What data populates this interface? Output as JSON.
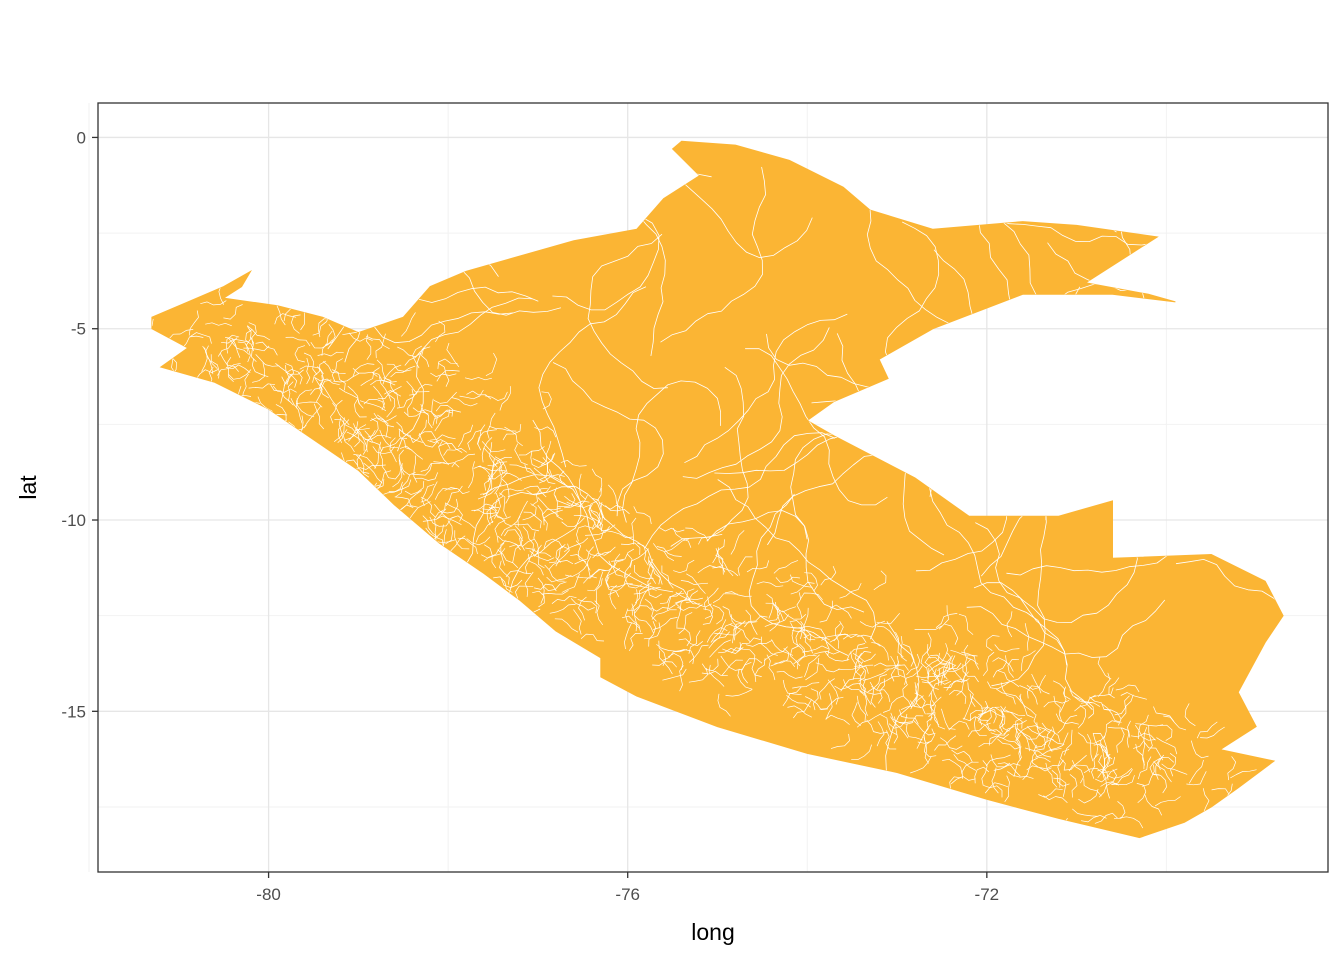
{
  "chart_data": {
    "type": "map",
    "xlabel": "long",
    "ylabel": "lat",
    "xlim": [
      -81.9,
      -68.2
    ],
    "ylim": [
      -19.2,
      0.9
    ],
    "x_ticks": [
      -80,
      -76,
      -72
    ],
    "y_ticks": [
      0,
      -5,
      -10,
      -15
    ],
    "x_minor": [
      -82,
      -78,
      -74,
      -70
    ],
    "y_minor": [
      -2.5,
      -7.5,
      -12.5,
      -17.5
    ],
    "grid": true,
    "fill_color": "#FBB534",
    "border_color": "#FFFFFF",
    "region": "Peru districts",
    "outline": [
      [
        -75.4,
        -0.1
      ],
      [
        -74.8,
        -0.2
      ],
      [
        -74.2,
        -0.6
      ],
      [
        -73.6,
        -1.3
      ],
      [
        -73.3,
        -1.9
      ],
      [
        -72.6,
        -2.4
      ],
      [
        -71.6,
        -2.2
      ],
      [
        -71.0,
        -2.3
      ],
      [
        -70.1,
        -2.6
      ],
      [
        -70.9,
        -3.8
      ],
      [
        -70.2,
        -4.1
      ],
      [
        -69.9,
        -4.3
      ],
      [
        -70.6,
        -4.1
      ],
      [
        -71.6,
        -4.1
      ],
      [
        -72.6,
        -5.0
      ],
      [
        -73.2,
        -5.8
      ],
      [
        -73.1,
        -6.3
      ],
      [
        -73.7,
        -6.9
      ],
      [
        -74.0,
        -7.4
      ],
      [
        -73.7,
        -7.8
      ],
      [
        -72.8,
        -8.9
      ],
      [
        -72.2,
        -9.9
      ],
      [
        -71.2,
        -9.9
      ],
      [
        -70.6,
        -9.5
      ],
      [
        -70.6,
        -11.0
      ],
      [
        -69.5,
        -10.9
      ],
      [
        -68.9,
        -11.6
      ],
      [
        -68.7,
        -12.5
      ],
      [
        -68.9,
        -13.2
      ],
      [
        -69.2,
        -14.5
      ],
      [
        -69.0,
        -15.4
      ],
      [
        -69.4,
        -16.0
      ],
      [
        -68.8,
        -16.3
      ],
      [
        -69.2,
        -17.0
      ],
      [
        -69.5,
        -17.5
      ],
      [
        -69.8,
        -17.9
      ],
      [
        -70.3,
        -18.3
      ],
      [
        -71.2,
        -17.8
      ],
      [
        -72.0,
        -17.3
      ],
      [
        -73.0,
        -16.6
      ],
      [
        -74.0,
        -16.1
      ],
      [
        -75.0,
        -15.4
      ],
      [
        -75.9,
        -14.6
      ],
      [
        -76.3,
        -14.1
      ],
      [
        -76.3,
        -13.6
      ],
      [
        -76.8,
        -12.9
      ],
      [
        -77.2,
        -12.1
      ],
      [
        -77.6,
        -11.4
      ],
      [
        -78.1,
        -10.6
      ],
      [
        -78.6,
        -9.6
      ],
      [
        -79.0,
        -8.7
      ],
      [
        -79.5,
        -7.9
      ],
      [
        -80.0,
        -7.1
      ],
      [
        -80.6,
        -6.4
      ],
      [
        -81.2,
        -6.0
      ],
      [
        -80.9,
        -5.5
      ],
      [
        -81.3,
        -5.0
      ],
      [
        -81.3,
        -4.7
      ],
      [
        -80.9,
        -4.3
      ],
      [
        -80.5,
        -3.9
      ],
      [
        -80.2,
        -3.5
      ],
      [
        -80.3,
        -3.9
      ],
      [
        -80.5,
        -4.2
      ],
      [
        -79.9,
        -4.4
      ],
      [
        -79.4,
        -4.7
      ],
      [
        -79.0,
        -5.1
      ],
      [
        -78.5,
        -4.7
      ],
      [
        -78.2,
        -3.9
      ],
      [
        -77.8,
        -3.5
      ],
      [
        -77.2,
        -3.1
      ],
      [
        -76.6,
        -2.7
      ],
      [
        -75.9,
        -2.4
      ],
      [
        -75.6,
        -1.6
      ],
      [
        -75.2,
        -1.0
      ],
      [
        -75.5,
        -0.3
      ]
    ]
  }
}
